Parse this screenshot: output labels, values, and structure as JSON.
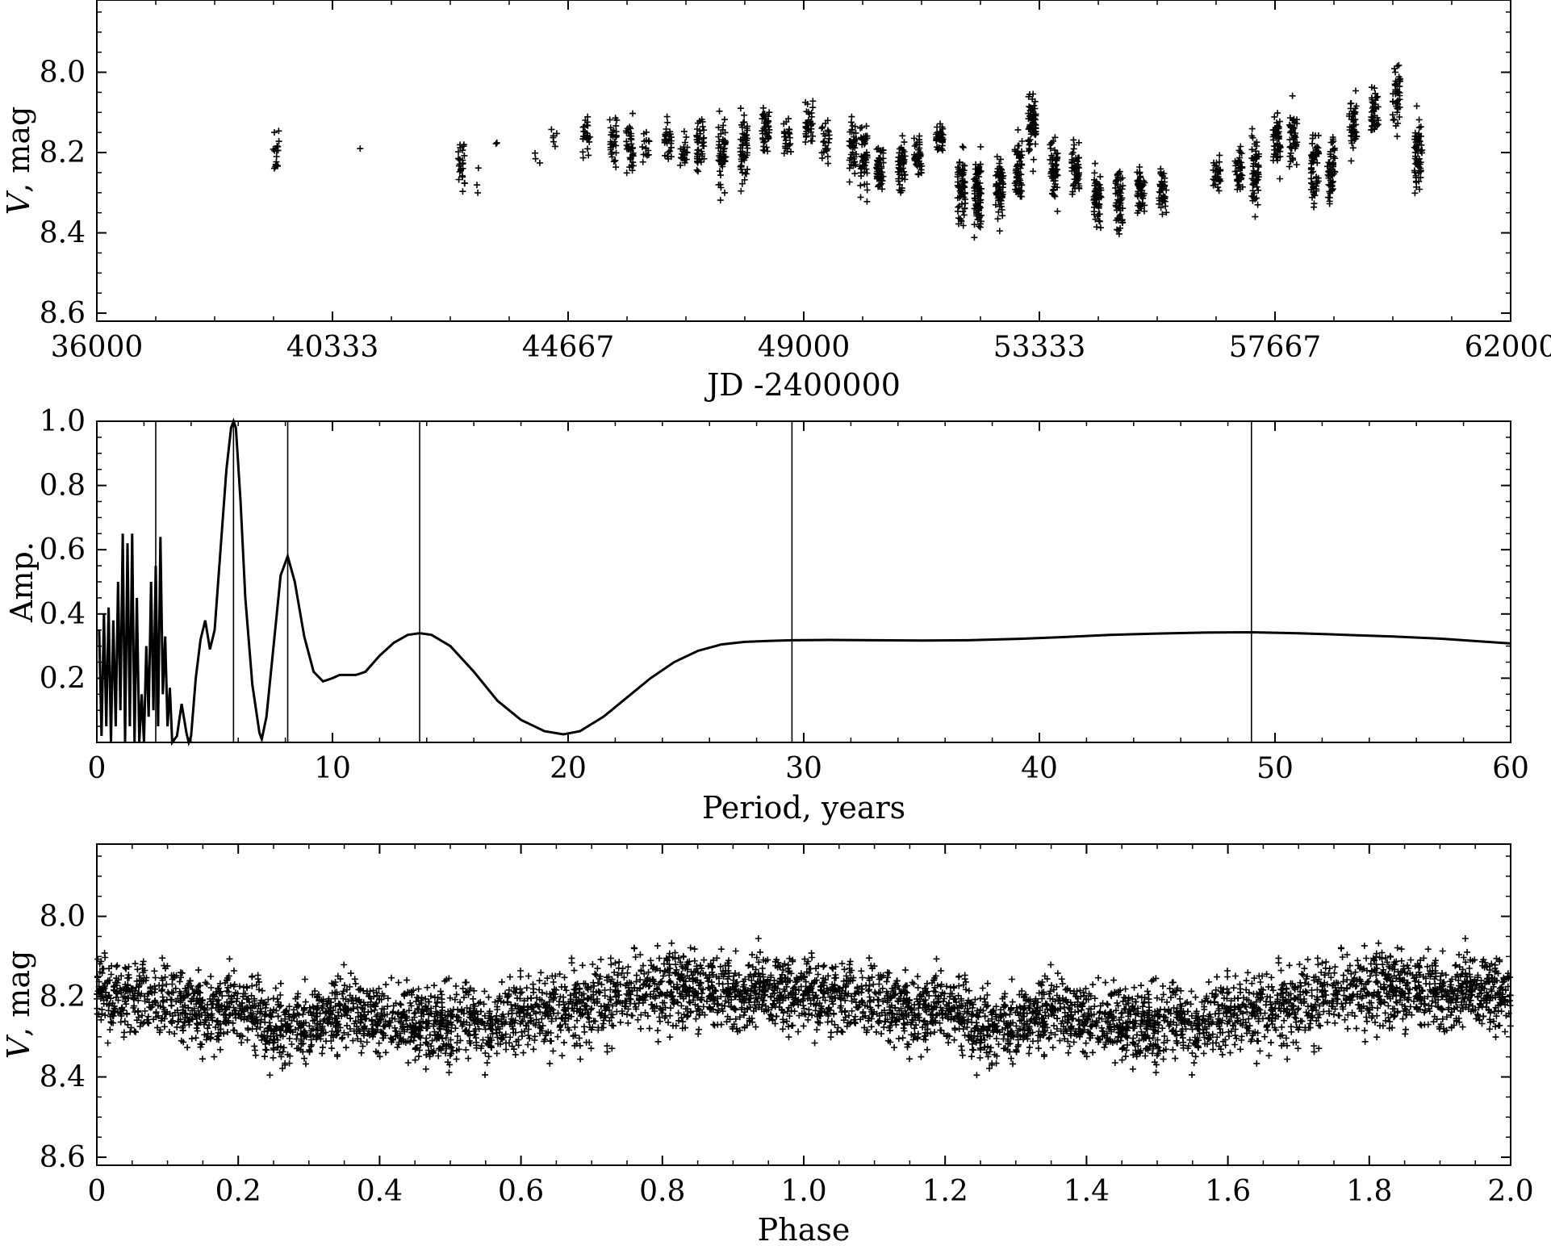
{
  "colors": {
    "ink": "#000000",
    "background": "#ffffff"
  },
  "chart_data": [
    {
      "id": "lightcurve",
      "type": "scatter",
      "marker": "plus",
      "xlabel": "JD -2400000",
      "ylabel_italic": "V",
      "ylabel_rest": ", mag",
      "xlim": [
        36000,
        62000
      ],
      "ylim": [
        8.62,
        7.82
      ],
      "xticks": [
        36000,
        40333,
        44667,
        49000,
        53333,
        57667,
        62000
      ],
      "xtick_labels": [
        "36000",
        "40333",
        "44667",
        "49000",
        "53333",
        "57667",
        "62000"
      ],
      "yticks": [
        8.0,
        8.2,
        8.4,
        8.6
      ],
      "ytick_labels": [
        "8.0",
        "8.2",
        "8.4",
        "8.6"
      ],
      "seasons": [
        [
          39300,
          8.2,
          0.07,
          18
        ],
        [
          40800,
          8.19,
          0.0,
          1
        ],
        [
          42700,
          8.23,
          0.07,
          25
        ],
        [
          42950,
          8.27,
          0.04,
          3
        ],
        [
          43300,
          8.18,
          0.02,
          2
        ],
        [
          44100,
          8.2,
          0.03,
          3
        ],
        [
          44400,
          8.17,
          0.03,
          6
        ],
        [
          45000,
          8.16,
          0.05,
          25
        ],
        [
          45500,
          8.17,
          0.06,
          30
        ],
        [
          45800,
          8.18,
          0.08,
          35
        ],
        [
          46100,
          8.2,
          0.05,
          15
        ],
        [
          46500,
          8.17,
          0.05,
          30
        ],
        [
          46800,
          8.2,
          0.05,
          20
        ],
        [
          47100,
          8.18,
          0.08,
          45
        ],
        [
          47500,
          8.2,
          0.09,
          55
        ],
        [
          47900,
          8.19,
          0.09,
          55
        ],
        [
          48300,
          8.14,
          0.07,
          45
        ],
        [
          48700,
          8.16,
          0.05,
          25
        ],
        [
          49100,
          8.12,
          0.07,
          35
        ],
        [
          49400,
          8.16,
          0.07,
          25
        ],
        [
          49900,
          8.18,
          0.08,
          40
        ],
        [
          50100,
          8.21,
          0.1,
          50
        ],
        [
          50400,
          8.24,
          0.07,
          50
        ],
        [
          50800,
          8.23,
          0.07,
          50
        ],
        [
          51100,
          8.21,
          0.05,
          45
        ],
        [
          51500,
          8.17,
          0.04,
          40
        ],
        [
          51900,
          8.29,
          0.09,
          70
        ],
        [
          52200,
          8.31,
          0.11,
          80
        ],
        [
          52600,
          8.29,
          0.09,
          70
        ],
        [
          52950,
          8.25,
          0.09,
          60
        ],
        [
          53200,
          8.14,
          0.09,
          70
        ],
        [
          53600,
          8.24,
          0.08,
          60
        ],
        [
          54000,
          8.25,
          0.07,
          50
        ],
        [
          54400,
          8.31,
          0.08,
          60
        ],
        [
          54800,
          8.33,
          0.08,
          60
        ],
        [
          55200,
          8.3,
          0.07,
          50
        ],
        [
          55600,
          8.3,
          0.06,
          40
        ],
        [
          56600,
          8.25,
          0.06,
          30
        ],
        [
          57000,
          8.24,
          0.07,
          40
        ],
        [
          57300,
          8.24,
          0.1,
          55
        ],
        [
          57700,
          8.17,
          0.07,
          50
        ],
        [
          58000,
          8.16,
          0.07,
          45
        ],
        [
          58400,
          8.24,
          0.09,
          60
        ],
        [
          58700,
          8.25,
          0.09,
          55
        ],
        [
          59100,
          8.13,
          0.07,
          45
        ],
        [
          59500,
          8.1,
          0.07,
          40
        ],
        [
          59900,
          8.06,
          0.08,
          45
        ],
        [
          60300,
          8.2,
          0.12,
          60
        ]
      ]
    },
    {
      "id": "periodogram",
      "type": "line",
      "xlabel": "Period, years",
      "ylabel": "Amp.",
      "xlim": [
        0,
        60
      ],
      "ylim": [
        0,
        1
      ],
      "xticks": [
        0,
        10,
        20,
        30,
        40,
        50,
        60
      ],
      "xtick_labels": [
        "0",
        "10",
        "20",
        "30",
        "40",
        "50",
        "60"
      ],
      "yticks": [
        0.2,
        0.4,
        0.6,
        0.8,
        1.0
      ],
      "ytick_labels": [
        "0.2",
        "0.4",
        "0.6",
        "0.8",
        "1.0"
      ],
      "marked_periods": [
        2.5,
        5.8,
        8.1,
        13.7,
        29.5,
        49.0
      ],
      "series": [
        {
          "name": "amplitude",
          "x": [
            0.1,
            0.2,
            0.3,
            0.4,
            0.5,
            0.6,
            0.7,
            0.8,
            0.9,
            1.0,
            1.1,
            1.2,
            1.3,
            1.4,
            1.5,
            1.6,
            1.7,
            1.8,
            1.9,
            2.0,
            2.1,
            2.2,
            2.3,
            2.4,
            2.5,
            2.6,
            2.7,
            2.8,
            2.9,
            3.0,
            3.1,
            3.2,
            3.4,
            3.6,
            3.8,
            3.9,
            4.0,
            4.2,
            4.4,
            4.6,
            4.8,
            5.0,
            5.2,
            5.5,
            5.7,
            5.8,
            5.9,
            6.1,
            6.3,
            6.6,
            6.9,
            7.0,
            7.2,
            7.5,
            7.8,
            8.1,
            8.4,
            8.8,
            9.2,
            9.6,
            10.0,
            10.3,
            10.6,
            11.0,
            11.4,
            12.0,
            12.6,
            13.2,
            13.7,
            14.2,
            15.0,
            16.0,
            17.0,
            18.0,
            19.0,
            19.8,
            20.5,
            21.5,
            22.5,
            23.5,
            24.5,
            25.5,
            26.5,
            27.5,
            28.5,
            29.5,
            31.0,
            33.0,
            35.0,
            37.0,
            39.0,
            41.0,
            43.0,
            45.0,
            47.0,
            49.0,
            51.0,
            53.0,
            55.0,
            57.0,
            59.0,
            60.0
          ],
          "values": [
            0.35,
            0.02,
            0.4,
            0.05,
            0.42,
            0.0,
            0.38,
            0.05,
            0.5,
            0.1,
            0.65,
            0.0,
            0.62,
            0.05,
            0.65,
            0.0,
            0.45,
            0.0,
            0.15,
            0.0,
            0.3,
            0.08,
            0.5,
            0.1,
            0.55,
            0.05,
            0.64,
            0.15,
            0.33,
            0.05,
            0.17,
            0.0,
            0.02,
            0.12,
            0.03,
            0.0,
            0.02,
            0.2,
            0.32,
            0.38,
            0.29,
            0.35,
            0.55,
            0.85,
            0.98,
            1.0,
            0.98,
            0.75,
            0.45,
            0.18,
            0.03,
            0.01,
            0.08,
            0.3,
            0.52,
            0.58,
            0.5,
            0.33,
            0.22,
            0.19,
            0.2,
            0.21,
            0.21,
            0.21,
            0.22,
            0.27,
            0.31,
            0.335,
            0.34,
            0.335,
            0.3,
            0.22,
            0.13,
            0.07,
            0.035,
            0.025,
            0.035,
            0.08,
            0.14,
            0.2,
            0.25,
            0.285,
            0.305,
            0.313,
            0.316,
            0.318,
            0.319,
            0.318,
            0.317,
            0.318,
            0.322,
            0.328,
            0.335,
            0.339,
            0.342,
            0.343,
            0.34,
            0.335,
            0.33,
            0.323,
            0.313,
            0.308
          ]
        }
      ]
    },
    {
      "id": "phasecurve",
      "type": "scatter",
      "marker": "plus",
      "xlabel": "Phase",
      "ylabel_italic": "V",
      "ylabel_rest": ", mag",
      "xlim": [
        0,
        2
      ],
      "ylim": [
        8.62,
        7.82
      ],
      "xticks": [
        0,
        0.2,
        0.4,
        0.6,
        0.8,
        1.0,
        1.2,
        1.4,
        1.6,
        1.8,
        2.0
      ],
      "xtick_labels": [
        "0",
        "0.2",
        "0.4",
        "0.6",
        "0.8",
        "1.0",
        "1.2",
        "1.4",
        "1.6",
        "1.8",
        "2.0"
      ],
      "yticks": [
        8.0,
        8.2,
        8.4,
        8.6
      ],
      "ytick_labels": [
        "8.0",
        "8.2",
        "8.4",
        "8.6"
      ],
      "profile": {
        "phase": [
          0.0,
          0.05,
          0.1,
          0.15,
          0.2,
          0.25,
          0.3,
          0.35,
          0.4,
          0.45,
          0.5,
          0.55,
          0.6,
          0.65,
          0.7,
          0.75,
          0.8,
          0.85,
          0.9,
          0.95,
          1.0
        ],
        "mag": [
          8.2,
          8.2,
          8.21,
          8.24,
          8.22,
          8.28,
          8.27,
          8.24,
          8.26,
          8.27,
          8.26,
          8.28,
          8.25,
          8.24,
          8.22,
          8.19,
          8.18,
          8.18,
          8.2,
          8.19,
          8.2
        ],
        "scatter": 0.1,
        "count": 2600
      }
    }
  ]
}
